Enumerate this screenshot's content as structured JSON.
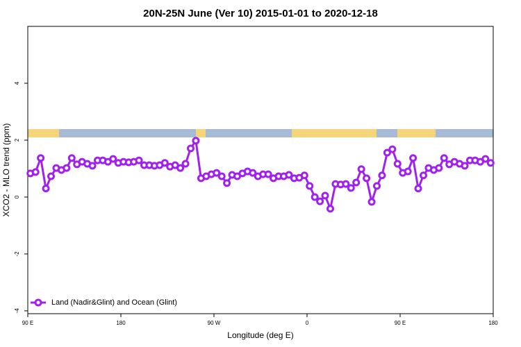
{
  "chart_data": {
    "type": "line",
    "title": "20N-25N June (Ver 10)   2015-01-01 to 2020-12-18",
    "x_label": "Longitude (deg E)",
    "y_label": "XCO2 - MLO trend (ppm)",
    "xlim": [
      90,
      540
    ],
    "xticks": [
      {
        "value": 90,
        "label": "90 E"
      },
      {
        "value": 180,
        "label": "180"
      },
      {
        "value": 270,
        "label": "90 W"
      },
      {
        "value": 360,
        "label": "0"
      },
      {
        "value": 450,
        "label": "90 E"
      },
      {
        "value": 540,
        "label": "180"
      }
    ],
    "ylim": [
      -4.1,
      6
    ],
    "yticks": [
      -4,
      -2,
      0,
      2,
      4
    ],
    "legend": "bottom-left",
    "x": [
      92.5,
      97.5,
      102.5,
      107.5,
      112.5,
      117.5,
      122.5,
      127.5,
      132.5,
      137.5,
      142.5,
      147.5,
      152.5,
      157.5,
      162.5,
      167.5,
      172.5,
      177.5,
      182.5,
      187.5,
      192.5,
      197.5,
      202.5,
      207.5,
      212.5,
      217.5,
      222.5,
      227.5,
      232.5,
      237.5,
      242.5,
      247.5,
      252.5,
      257.5,
      262.5,
      267.5,
      272.5,
      277.5,
      282.5,
      287.5,
      292.5,
      297.5,
      302.5,
      307.5,
      312.5,
      317.5,
      322.5,
      327.5,
      332.5,
      337.5,
      342.5,
      347.5,
      352.5,
      357.5,
      362.5,
      367.5,
      372.5,
      377.5,
      382.5,
      387.5,
      392.5,
      397.5,
      402.5,
      407.5,
      412.5,
      417.5,
      422.5,
      427.5,
      432.5,
      437.5,
      442.5,
      447.5,
      452.5,
      457.5,
      462.5,
      467.5,
      472.5,
      477.5,
      482.5,
      487.5,
      492.5,
      497.5,
      502.5,
      507.5,
      512.5,
      517.5,
      522.5,
      527.5,
      532.5,
      537.5
    ],
    "series": [
      {
        "name": "Land (Nadir&Glint) and Ocean (Glint)",
        "color": "#a020f0",
        "values": [
          0.83,
          0.88,
          1.37,
          0.3,
          0.73,
          1.02,
          0.95,
          1.02,
          1.37,
          1.15,
          1.24,
          1.17,
          1.1,
          1.29,
          1.29,
          1.24,
          1.34,
          1.2,
          1.24,
          1.22,
          1.24,
          1.29,
          1.12,
          1.12,
          1.1,
          1.12,
          1.2,
          1.07,
          1.12,
          1.02,
          1.17,
          1.71,
          1.98,
          0.66,
          0.73,
          0.8,
          0.85,
          0.73,
          0.49,
          0.78,
          0.73,
          0.83,
          0.9,
          0.85,
          0.73,
          0.8,
          0.8,
          0.66,
          0.73,
          0.73,
          0.78,
          0.66,
          0.68,
          0.76,
          0.39,
          0.0,
          -0.15,
          0.05,
          -0.41,
          0.46,
          0.44,
          0.46,
          0.32,
          0.51,
          0.98,
          0.66,
          -0.17,
          0.39,
          0.76,
          1.56,
          1.68,
          1.17,
          0.85,
          0.9,
          1.37,
          0.3,
          0.76,
          1.02,
          0.95,
          1.02,
          1.37,
          1.15,
          1.24,
          1.17,
          1.1,
          1.29,
          1.29,
          1.24,
          1.34,
          1.2
        ]
      }
    ]
  }
}
